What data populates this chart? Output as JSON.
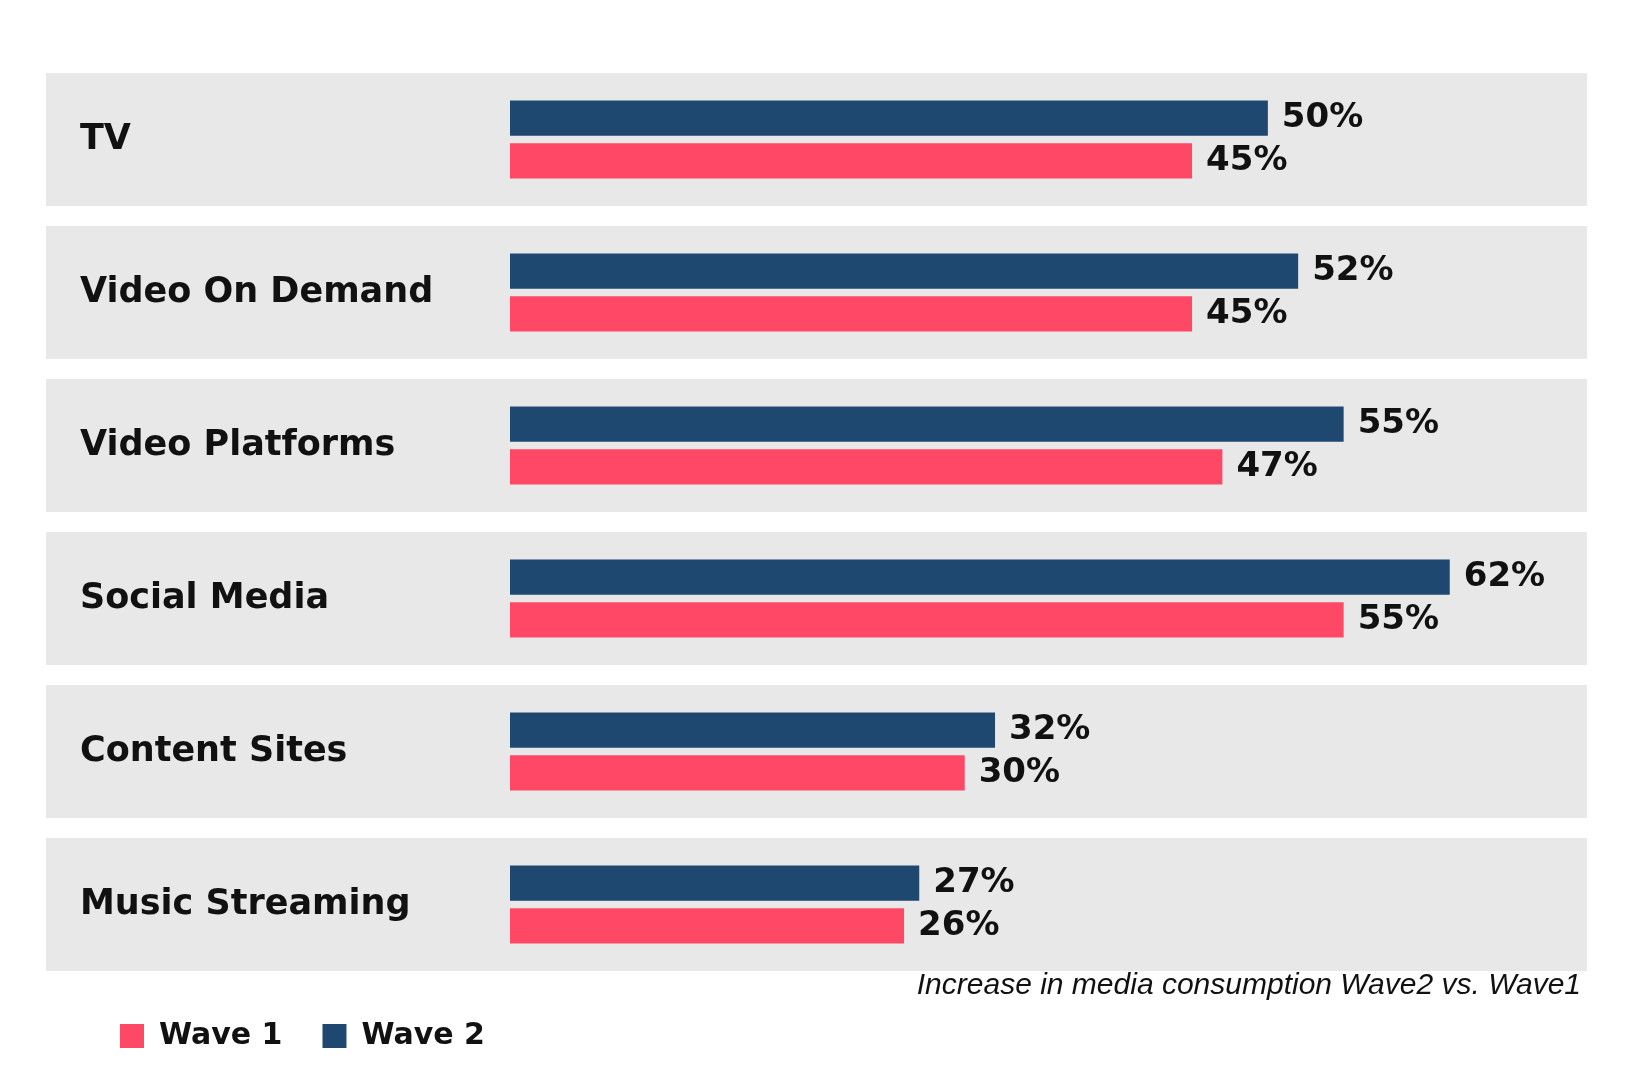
{
  "chart_data": {
    "type": "bar",
    "orientation": "horizontal",
    "categories": [
      "TV",
      "Video On Demand",
      "Video Platforms",
      "Social Media",
      "Content Sites",
      "Music Streaming"
    ],
    "series": [
      {
        "name": "Wave 2",
        "color": "#1f4870",
        "values": [
          50,
          52,
          55,
          62,
          32,
          27
        ],
        "value_labels": [
          "50%",
          "52%",
          "55%",
          "62%",
          "32%",
          "27%"
        ]
      },
      {
        "name": "Wave 1",
        "color": "#ff4766",
        "values": [
          45,
          45,
          47,
          55,
          30,
          26
        ],
        "value_labels": [
          "45%",
          "45%",
          "47%",
          "55%",
          "30%",
          "26%"
        ]
      }
    ],
    "legend": "bottom left",
    "annotations": [
      "Increase in media consumption Wave2 vs. Wave1"
    ]
  }
}
